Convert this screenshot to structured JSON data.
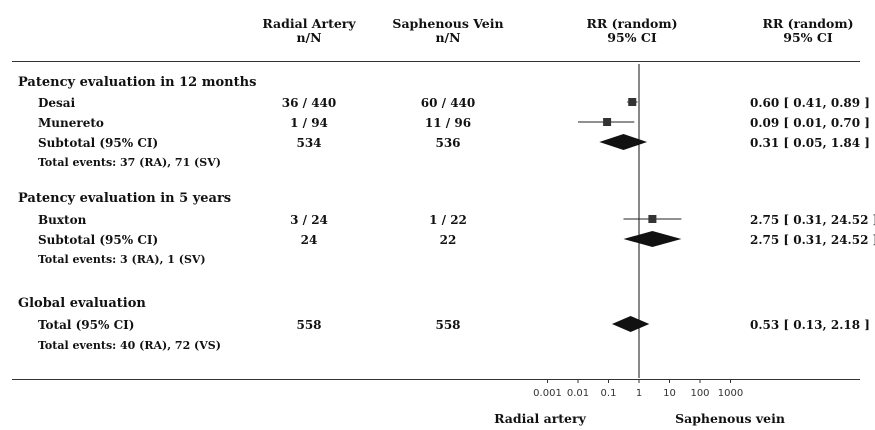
{
  "headers": {
    "group1": [
      "Radial Artery",
      "n/N"
    ],
    "group2": [
      "Saphenous Vein",
      "n/N"
    ],
    "plot": [
      "RR (random)",
      "95% CI"
    ],
    "ci": [
      "RR (random)",
      "95% CI"
    ]
  },
  "sections": [
    {
      "title": "Patency evaluation in 12 months",
      "rows": [
        {
          "label": "Desai",
          "g1": "36 / 440",
          "g2": "60 / 440",
          "ci": "0.60 [ 0.41,  0.89 ]",
          "kind": "study"
        },
        {
          "label": "Munereto",
          "g1": "1 / 94",
          "g2": "11 / 96",
          "ci": "0.09 [ 0.01,  0.70 ]",
          "kind": "study"
        },
        {
          "label": "Subtotal (95% CI)",
          "g1": "534",
          "g2": "536",
          "ci": "0.31 [ 0.05,  1.84 ]",
          "kind": "pooled"
        }
      ],
      "events": "Total events: 37 (RA), 71 (SV)"
    },
    {
      "title": "Patency evaluation in 5 years",
      "rows": [
        {
          "label": "Buxton",
          "g1": "3 / 24",
          "g2": "1 / 22",
          "ci": "2.75 [ 0.31, 24.52 ]",
          "kind": "study"
        },
        {
          "label": "Subtotal (95% CI)",
          "g1": "24",
          "g2": "22",
          "ci": "2.75 [ 0.31, 24.52 ]",
          "kind": "pooled"
        }
      ],
      "events": "Total events: 3 (RA), 1 (SV)"
    },
    {
      "title": "Global evaluation",
      "rows": [
        {
          "label": "Total (95% CI)",
          "g1": "558",
          "g2": "558",
          "ci": "0.53 [ 0.13, 2.18 ]",
          "kind": "pooled"
        }
      ],
      "events": "Total events: 40 (RA), 72 (VS)"
    }
  ],
  "axis": {
    "ticks": [
      "0.001",
      "0.01",
      "0.1",
      "1",
      "10",
      "100",
      "1000"
    ],
    "left_label": "Radial artery",
    "right_label": "Saphenous vein"
  },
  "chart_data": {
    "type": "forest",
    "scale": "log",
    "xlim": [
      0.001,
      1000
    ],
    "reference_line": 1,
    "points": [
      {
        "study": "Desai",
        "rr": 0.6,
        "lo": 0.41,
        "hi": 0.89,
        "kind": "study"
      },
      {
        "study": "Munereto",
        "rr": 0.09,
        "lo": 0.01,
        "hi": 0.7,
        "kind": "study"
      },
      {
        "study": "Subtotal (95% CI)",
        "rr": 0.31,
        "lo": 0.05,
        "hi": 1.84,
        "kind": "pooled"
      },
      {
        "study": "Buxton",
        "rr": 2.75,
        "lo": 0.31,
        "hi": 24.52,
        "kind": "study"
      },
      {
        "study": "Subtotal (95% CI)",
        "rr": 2.75,
        "lo": 0.31,
        "hi": 24.52,
        "kind": "pooled"
      },
      {
        "study": "Total (95% CI)",
        "rr": 0.53,
        "lo": 0.13,
        "hi": 2.18,
        "kind": "pooled"
      }
    ]
  }
}
